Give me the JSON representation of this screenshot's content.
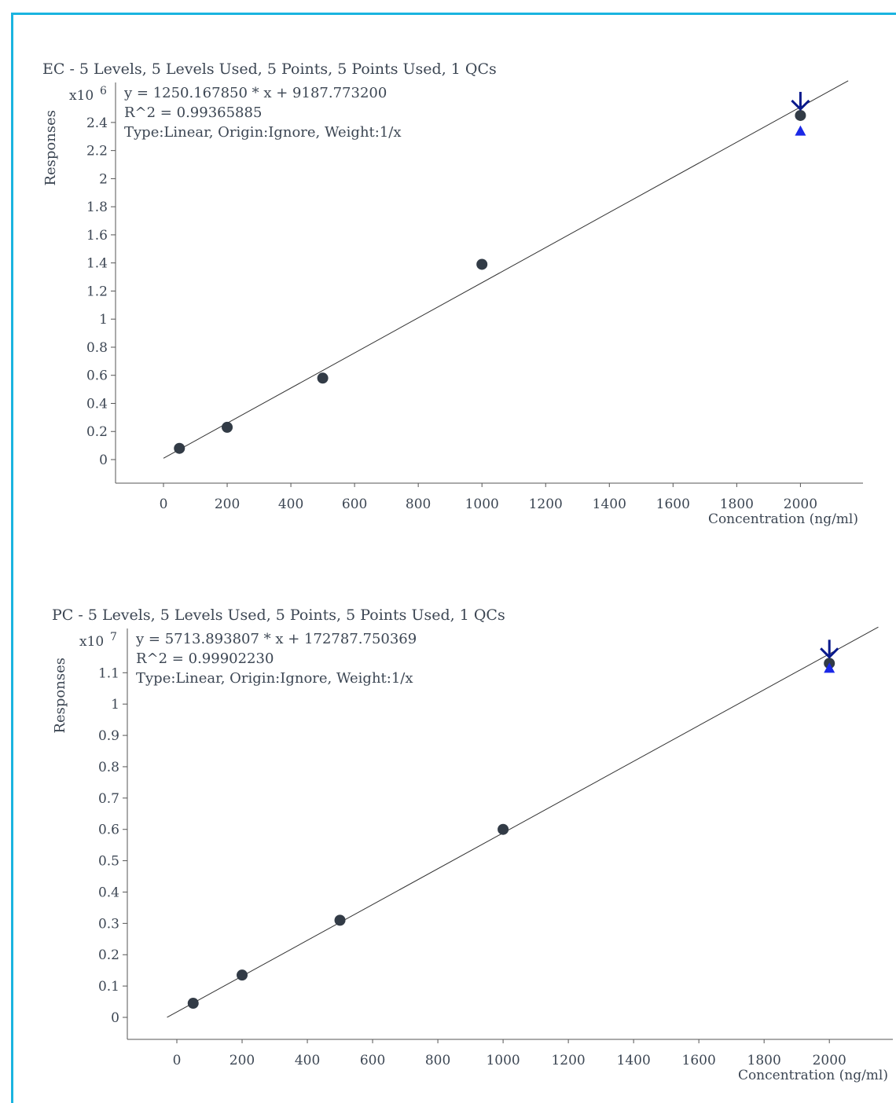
{
  "frame": {
    "border_color": "#1ab4e0"
  },
  "chart_data": [
    {
      "type": "scatter",
      "title": "EC - 5 Levels, 5 Levels Used, 5 Points, 5 Points Used, 1 QCs",
      "equation": "y = 1250.167850 * x  + 9187.773200",
      "r2": "R^2 = 0.99365885",
      "fit_info": "Type:Linear, Origin:Ignore, Weight:1/x",
      "ylabel": "Responses",
      "y_multiplier": "x10",
      "y_exponent": "6",
      "xlabel": "Concentration (ng/ml)",
      "xlim": [
        -150,
        2200
      ],
      "ylim": [
        -0.17,
        2.62
      ],
      "x_ticks": [
        "0",
        "200",
        "400",
        "600",
        "800",
        "1000",
        "1200",
        "1400",
        "1600",
        "1800",
        "2000"
      ],
      "y_ticks": [
        "0",
        "0.2",
        "0.4",
        "0.6",
        "0.8",
        "1",
        "1.2",
        "1.4",
        "1.6",
        "1.8",
        "2",
        "2.2",
        "2.4"
      ],
      "fit_line": {
        "x_start": 0,
        "x_end": 2150,
        "slope": 1250.16785,
        "intercept": 9187.7732
      },
      "points": [
        {
          "x": 50,
          "y": 0.08
        },
        {
          "x": 200,
          "y": 0.23
        },
        {
          "x": 500,
          "y": 0.58
        },
        {
          "x": 1000,
          "y": 1.39
        },
        {
          "x": 2000,
          "y": 2.45
        }
      ],
      "qc_points": [
        {
          "x": 2000,
          "y": 2.34
        }
      ],
      "marker_at": {
        "x": 2000,
        "y": 2.45
      },
      "grid": false,
      "colors": {
        "point": "#323b46",
        "qc": "#1a28e6",
        "arrow": "#0a1a8c",
        "line": "#323232",
        "axis": "#555555"
      }
    },
    {
      "type": "scatter",
      "title": "PC - 5 Levels, 5 Levels Used, 5 Points, 5 Points Used, 1 QCs",
      "equation": "y = 5713.893807 * x  + 172787.750369",
      "r2": "R^2 = 0.99902230",
      "fit_info": "Type:Linear, Origin:Ignore, Weight:1/x",
      "ylabel": "Responses",
      "y_multiplier": "x10",
      "y_exponent": "7",
      "xlabel": "Concentration (ng/ml)",
      "xlim": [
        -150,
        2200
      ],
      "ylim": [
        -0.07,
        1.2
      ],
      "x_ticks": [
        "0",
        "200",
        "400",
        "600",
        "800",
        "1000",
        "1200",
        "1400",
        "1600",
        "1800",
        "2000"
      ],
      "y_ticks": [
        "0",
        "0.1",
        "0.2",
        "0.3",
        "0.4",
        "0.5",
        "0.6",
        "0.7",
        "0.8",
        "0.9",
        "1",
        "1.1"
      ],
      "fit_line": {
        "x_start": -30,
        "x_end": 2150,
        "slope": 5713.893807,
        "intercept": 172787.750369
      },
      "points": [
        {
          "x": 50,
          "y": 0.045
        },
        {
          "x": 200,
          "y": 0.135
        },
        {
          "x": 500,
          "y": 0.31
        },
        {
          "x": 1000,
          "y": 0.6
        },
        {
          "x": 2000,
          "y": 1.13
        }
      ],
      "qc_points": [
        {
          "x": 2000,
          "y": 1.115
        }
      ],
      "marker_at": {
        "x": 2000,
        "y": 1.13
      },
      "grid": false,
      "colors": {
        "point": "#323b46",
        "qc": "#1a28e6",
        "arrow": "#0a1a8c",
        "line": "#323232",
        "axis": "#555555"
      }
    }
  ]
}
